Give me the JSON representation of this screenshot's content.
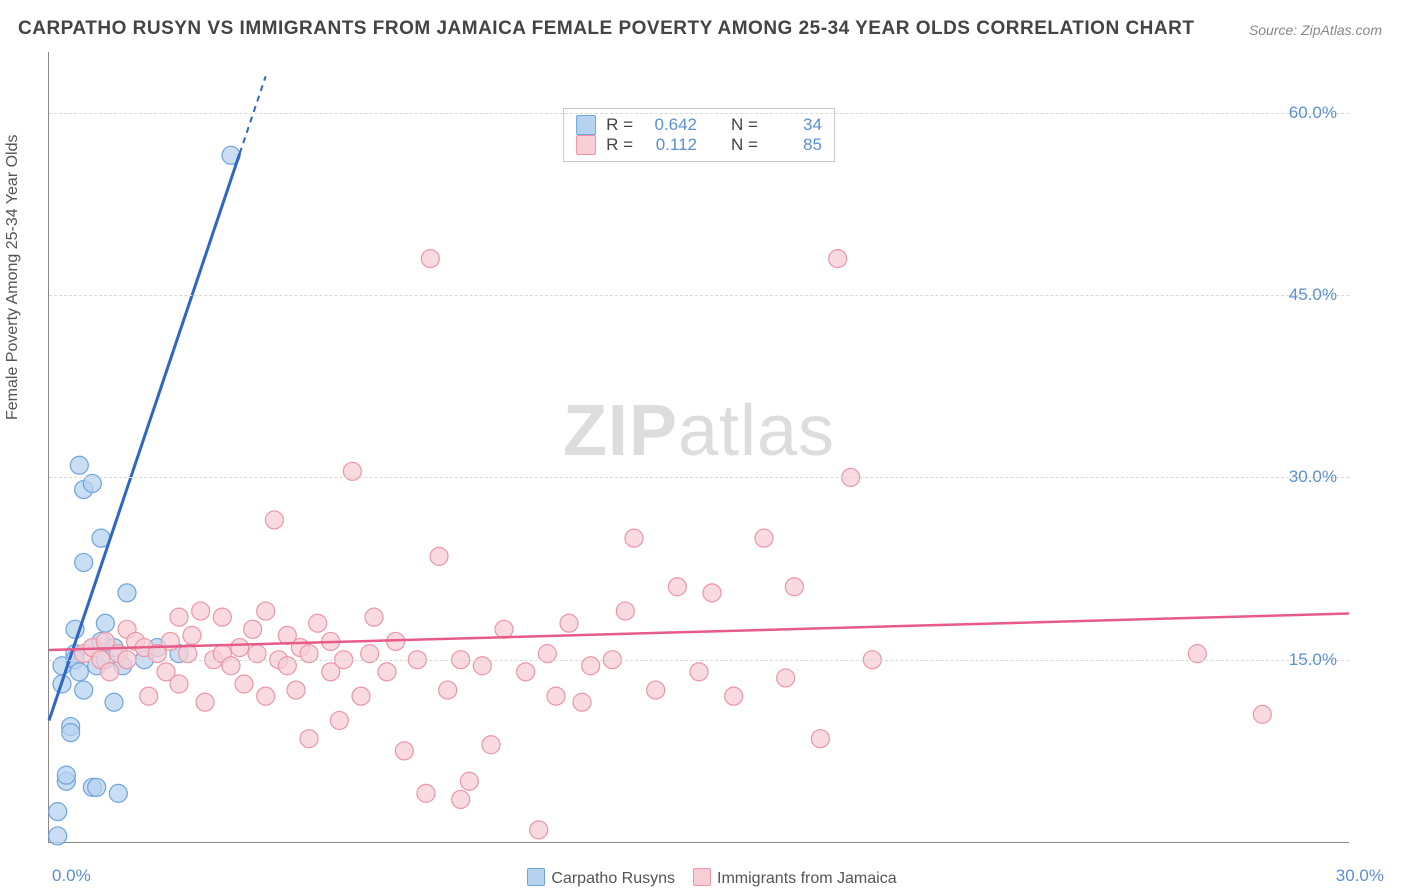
{
  "title": "CARPATHO RUSYN VS IMMIGRANTS FROM JAMAICA FEMALE POVERTY AMONG 25-34 YEAR OLDS CORRELATION CHART",
  "source": "Source: ZipAtlas.com",
  "watermark_a": "ZIP",
  "watermark_b": "atlas",
  "ylabel": "Female Poverty Among 25-34 Year Olds",
  "axes": {
    "xmin": 0.0,
    "xmax": 30.0,
    "ymin": 0.0,
    "ymax": 65.0,
    "x_tick_labels": {
      "min": "0.0%",
      "max": "30.0%"
    },
    "y_grid": [
      15.0,
      30.0,
      45.0,
      60.0
    ],
    "y_tick_labels": [
      "15.0%",
      "30.0%",
      "45.0%",
      "60.0%"
    ],
    "grid_color": "#d8d8d8",
    "axis_color": "#888888",
    "tick_label_color": "#5b8fd6",
    "tick_fontsize": 17,
    "label_color": "#555555",
    "label_fontsize": 16
  },
  "series": [
    {
      "name": "Carpatho Rusyns",
      "color_fill": "#b7d2ef",
      "color_stroke": "#6ea4de",
      "line_color": "#2f66c4",
      "marker_radius": 9,
      "R": "0.642",
      "N": "34",
      "trend": {
        "x1": 0.0,
        "y1": 10.0,
        "x2": 5.0,
        "y2": 63.0,
        "dash_from_x": 4.4
      },
      "points": [
        [
          0.2,
          2.5
        ],
        [
          0.2,
          0.5
        ],
        [
          0.3,
          13.0
        ],
        [
          0.3,
          14.5
        ],
        [
          0.4,
          5.0
        ],
        [
          0.4,
          5.5
        ],
        [
          0.5,
          9.5
        ],
        [
          0.5,
          9.0
        ],
        [
          0.6,
          15.5
        ],
        [
          0.6,
          15.0
        ],
        [
          0.6,
          17.5
        ],
        [
          0.7,
          14.0
        ],
        [
          0.7,
          31.0
        ],
        [
          0.8,
          12.5
        ],
        [
          0.8,
          29.0
        ],
        [
          0.8,
          23.0
        ],
        [
          1.0,
          16.0
        ],
        [
          1.0,
          29.5
        ],
        [
          1.0,
          4.5
        ],
        [
          1.1,
          14.5
        ],
        [
          1.1,
          4.5
        ],
        [
          1.2,
          16.5
        ],
        [
          1.2,
          25.0
        ],
        [
          1.3,
          15.0
        ],
        [
          1.3,
          18.0
        ],
        [
          1.5,
          11.5
        ],
        [
          1.5,
          16.0
        ],
        [
          1.6,
          4.0
        ],
        [
          1.7,
          14.5
        ],
        [
          1.8,
          20.5
        ],
        [
          2.2,
          15.0
        ],
        [
          2.5,
          16.0
        ],
        [
          3.0,
          15.5
        ],
        [
          4.2,
          56.5
        ]
      ]
    },
    {
      "name": "Immigrants from Jamaica",
      "color_fill": "#f7cdd6",
      "color_stroke": "#ec95a7",
      "line_color": "#e85a88",
      "marker_radius": 9,
      "R": "0.112",
      "N": "85",
      "trend": {
        "x1": 0.0,
        "y1": 15.8,
        "x2": 30.0,
        "y2": 18.8
      },
      "points": [
        [
          0.8,
          15.5
        ],
        [
          1.0,
          16.0
        ],
        [
          1.2,
          15.0
        ],
        [
          1.3,
          16.5
        ],
        [
          1.4,
          14.0
        ],
        [
          1.6,
          15.5
        ],
        [
          1.8,
          15.0
        ],
        [
          1.8,
          17.5
        ],
        [
          2.0,
          16.5
        ],
        [
          2.2,
          16.0
        ],
        [
          2.3,
          12.0
        ],
        [
          2.5,
          15.5
        ],
        [
          2.7,
          14.0
        ],
        [
          2.8,
          16.5
        ],
        [
          3.0,
          18.5
        ],
        [
          3.0,
          13.0
        ],
        [
          3.2,
          15.5
        ],
        [
          3.3,
          17.0
        ],
        [
          3.5,
          19.0
        ],
        [
          3.6,
          11.5
        ],
        [
          3.8,
          15.0
        ],
        [
          4.0,
          15.5
        ],
        [
          4.0,
          18.5
        ],
        [
          4.2,
          14.5
        ],
        [
          4.4,
          16.0
        ],
        [
          4.5,
          13.0
        ],
        [
          4.7,
          17.5
        ],
        [
          4.8,
          15.5
        ],
        [
          5.0,
          19.0
        ],
        [
          5.0,
          12.0
        ],
        [
          5.2,
          26.5
        ],
        [
          5.3,
          15.0
        ],
        [
          5.5,
          14.5
        ],
        [
          5.5,
          17.0
        ],
        [
          5.7,
          12.5
        ],
        [
          5.8,
          16.0
        ],
        [
          6.0,
          8.5
        ],
        [
          6.0,
          15.5
        ],
        [
          6.2,
          18.0
        ],
        [
          6.5,
          14.0
        ],
        [
          6.5,
          16.5
        ],
        [
          6.7,
          10.0
        ],
        [
          6.8,
          15.0
        ],
        [
          7.0,
          30.5
        ],
        [
          7.2,
          12.0
        ],
        [
          7.4,
          15.5
        ],
        [
          7.5,
          18.5
        ],
        [
          7.8,
          14.0
        ],
        [
          8.0,
          16.5
        ],
        [
          8.2,
          7.5
        ],
        [
          8.5,
          15.0
        ],
        [
          8.7,
          4.0
        ],
        [
          8.8,
          48.0
        ],
        [
          9.0,
          23.5
        ],
        [
          9.2,
          12.5
        ],
        [
          9.5,
          15.0
        ],
        [
          9.5,
          3.5
        ],
        [
          9.7,
          5.0
        ],
        [
          10.0,
          14.5
        ],
        [
          10.2,
          8.0
        ],
        [
          10.5,
          17.5
        ],
        [
          11.0,
          14.0
        ],
        [
          11.3,
          1.0
        ],
        [
          11.5,
          15.5
        ],
        [
          11.7,
          12.0
        ],
        [
          12.0,
          18.0
        ],
        [
          12.3,
          11.5
        ],
        [
          12.5,
          14.5
        ],
        [
          13.0,
          15.0
        ],
        [
          13.3,
          19.0
        ],
        [
          13.5,
          25.0
        ],
        [
          14.0,
          12.5
        ],
        [
          14.5,
          21.0
        ],
        [
          15.0,
          14.0
        ],
        [
          15.3,
          20.5
        ],
        [
          15.8,
          12.0
        ],
        [
          16.5,
          25.0
        ],
        [
          17.0,
          13.5
        ],
        [
          17.8,
          8.5
        ],
        [
          18.2,
          48.0
        ],
        [
          18.5,
          30.0
        ],
        [
          19.0,
          15.0
        ],
        [
          26.5,
          15.5
        ],
        [
          28.0,
          10.5
        ],
        [
          17.2,
          21.0
        ]
      ]
    }
  ],
  "bottom_legend": {
    "items": [
      {
        "swatch": "#b7d2ef",
        "border": "#6ea4de",
        "label": "Carpatho Rusyns"
      },
      {
        "swatch": "#f7cdd6",
        "border": "#ec95a7",
        "label": "Immigrants from Jamaica"
      }
    ]
  },
  "corr_legend_labels": {
    "R": "R =",
    "N": "N ="
  }
}
